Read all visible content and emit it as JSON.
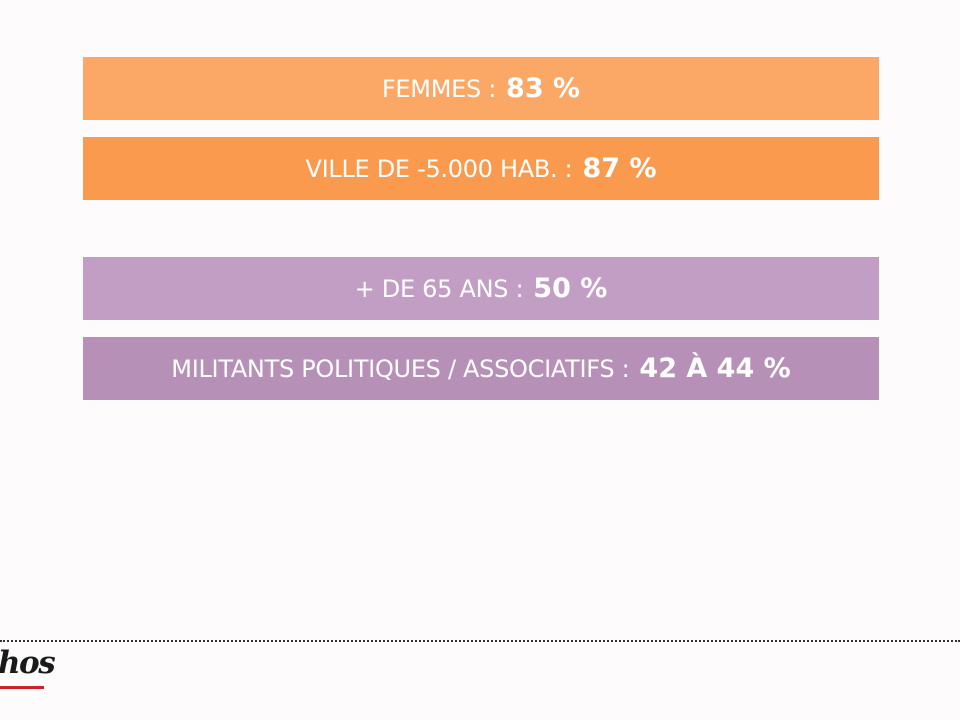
{
  "colors": {
    "orange_light": "#fba866",
    "orange": "#f99a4f",
    "mauve_light": "#c29ec4",
    "mauve": "#b690b7",
    "background": "#fdfbfb",
    "logo_accent": "#d0202a"
  },
  "bars": [
    {
      "label": "FEMMES  :",
      "value": "83 %"
    },
    {
      "label": "VILLE DE -5.000 HAB. :",
      "value": "87 %"
    },
    {
      "label": "+ DE 65 ANS :",
      "value": "50 %"
    },
    {
      "label": "MILITANTS POLITIQUES / ASSOCIATIFS :",
      "value": "42 À 44 %"
    }
  ],
  "footer": {
    "logo_text": "hos"
  }
}
